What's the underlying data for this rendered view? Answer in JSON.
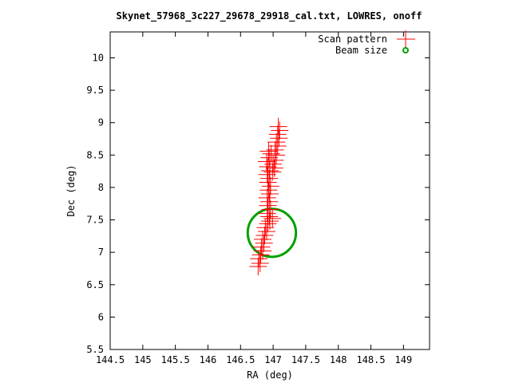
{
  "chart_data": {
    "type": "scatter",
    "title": "Skynet_57968_3c227_29678_29918_cal.txt, LOWRES, onoff",
    "xlabel": "RA (deg)",
    "ylabel": "Dec (deg)",
    "xlim": [
      144.5,
      149.4
    ],
    "ylim": [
      5.5,
      10.4
    ],
    "x_ticks": [
      "144.5",
      "145",
      "145.5",
      "146",
      "146.5",
      "147",
      "147.5",
      "148",
      "148.5",
      "149"
    ],
    "y_ticks": [
      "5.5",
      "6",
      "6.5",
      "7",
      "7.5",
      "8",
      "8.5",
      "9",
      "9.5",
      "10"
    ],
    "grid": false,
    "legend_placement": "top-right",
    "colors": {
      "scan": "#ff0000",
      "beam": "#00a000",
      "axes": "#000000"
    },
    "series": [
      {
        "name": "Scan pattern",
        "marker": "plus",
        "points": [
          [
            146.77,
            6.78
          ],
          [
            146.8,
            6.83
          ],
          [
            146.78,
            6.9
          ],
          [
            146.81,
            6.96
          ],
          [
            146.84,
            7.02
          ],
          [
            146.82,
            7.08
          ],
          [
            146.86,
            7.14
          ],
          [
            146.84,
            7.2
          ],
          [
            146.87,
            7.26
          ],
          [
            146.9,
            7.32
          ],
          [
            146.88,
            7.38
          ],
          [
            146.92,
            7.44
          ],
          [
            146.95,
            7.48
          ],
          [
            146.99,
            7.52
          ],
          [
            146.94,
            7.55
          ],
          [
            146.91,
            7.6
          ],
          [
            146.96,
            7.66
          ],
          [
            146.92,
            7.72
          ],
          [
            146.94,
            7.78
          ],
          [
            146.91,
            7.84
          ],
          [
            146.95,
            7.9
          ],
          [
            146.93,
            7.96
          ],
          [
            146.96,
            8.02
          ],
          [
            146.92,
            8.08
          ],
          [
            146.94,
            8.14
          ],
          [
            146.91,
            8.2
          ],
          [
            146.95,
            8.26
          ],
          [
            146.92,
            8.32
          ],
          [
            146.9,
            8.4
          ],
          [
            146.94,
            8.46
          ],
          [
            146.97,
            8.52
          ],
          [
            146.93,
            8.56
          ],
          [
            147.0,
            8.36
          ],
          [
            147.03,
            8.42
          ],
          [
            147.02,
            8.3
          ],
          [
            146.99,
            8.24
          ],
          [
            147.05,
            8.5
          ],
          [
            147.03,
            8.58
          ],
          [
            147.07,
            8.64
          ],
          [
            147.05,
            8.7
          ],
          [
            147.09,
            8.76
          ],
          [
            147.07,
            8.82
          ],
          [
            147.1,
            8.88
          ],
          [
            147.08,
            8.94
          ]
        ]
      },
      {
        "name": "Beam size",
        "marker": "circle",
        "center": [
          146.98,
          7.3
        ],
        "radius_deg": 0.37
      }
    ]
  }
}
